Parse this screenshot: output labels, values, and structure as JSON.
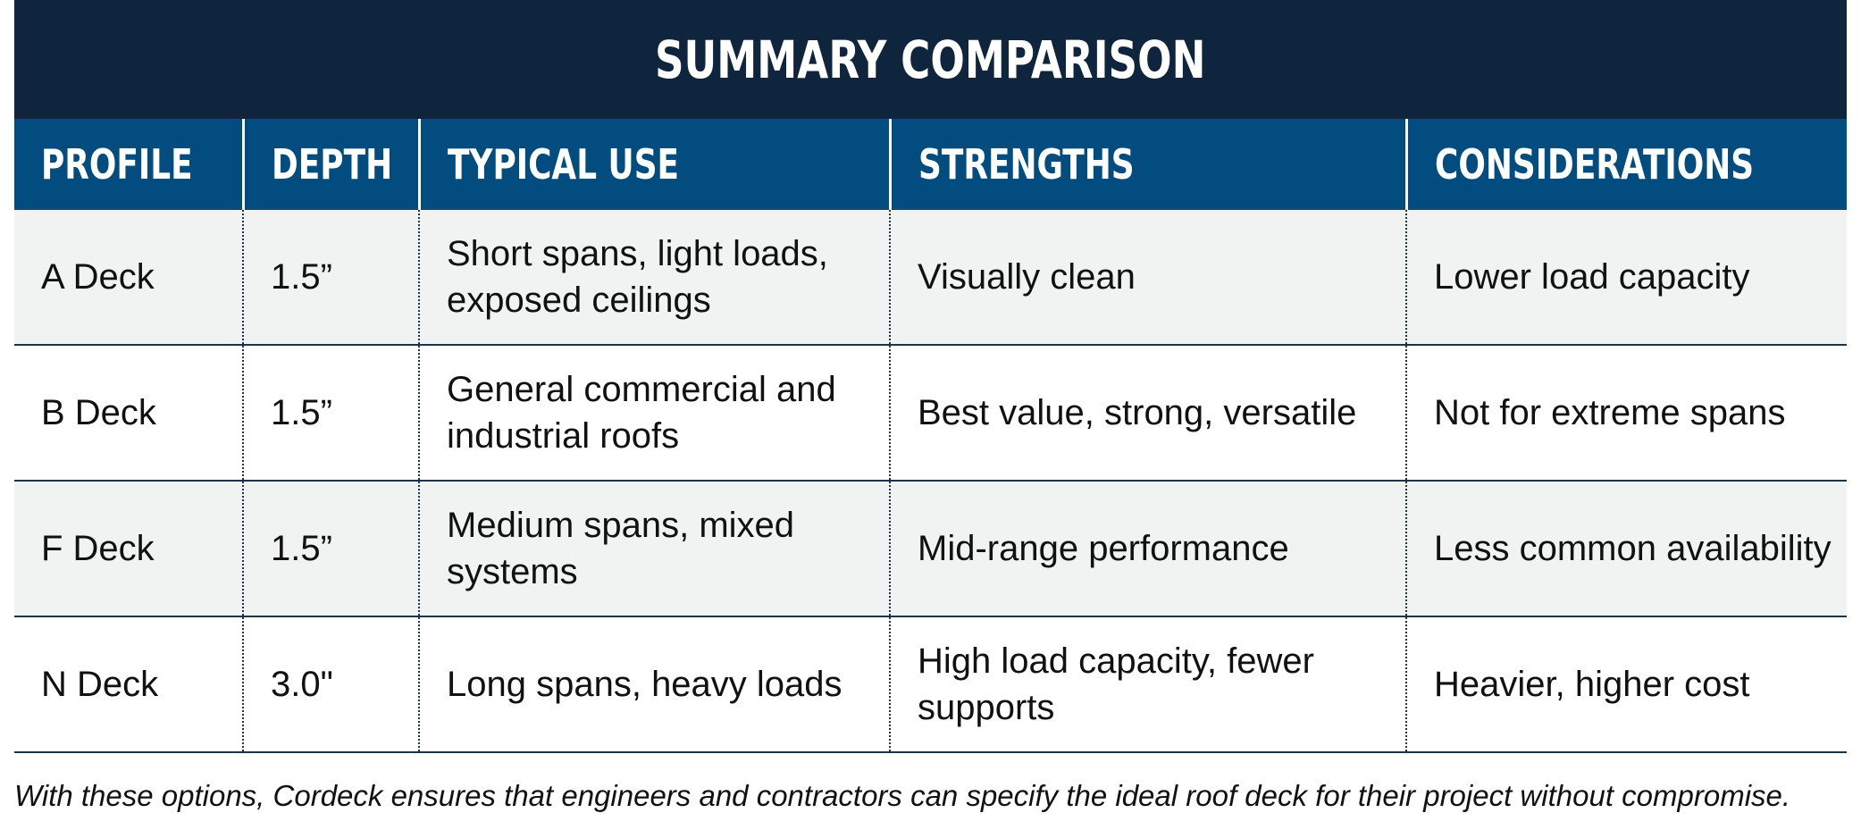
{
  "title": "SUMMARY COMPARISON",
  "colors": {
    "title_band": "#0f243d",
    "header_band": "#024c80",
    "row_alt": "#f1f2f2",
    "row": "#ffffff",
    "rule": "#1f3346"
  },
  "table": {
    "headers": [
      "PROFILE",
      "DEPTH",
      "TYPICAL USE",
      "STRENGTHS",
      "CONSIDERATIONS"
    ],
    "rows": [
      [
        "A Deck",
        "1.5”",
        "Short spans, light loads, exposed ceilings",
        "Visually clean",
        "Lower load capacity"
      ],
      [
        "B Deck",
        "1.5”",
        "General commercial and industrial roofs",
        "Best value, strong, versatile",
        "Not for extreme spans"
      ],
      [
        "F Deck",
        "1.5”",
        "Medium spans, mixed systems",
        "Mid-range performance",
        "Less common availability"
      ],
      [
        "N Deck",
        "3.0\"",
        "Long spans, heavy loads",
        "High load capacity, fewer supports",
        "Heavier, higher cost"
      ]
    ]
  },
  "footer": "With these options, Cordeck ensures that engineers and contractors can specify the ideal roof deck for their project without compromise."
}
